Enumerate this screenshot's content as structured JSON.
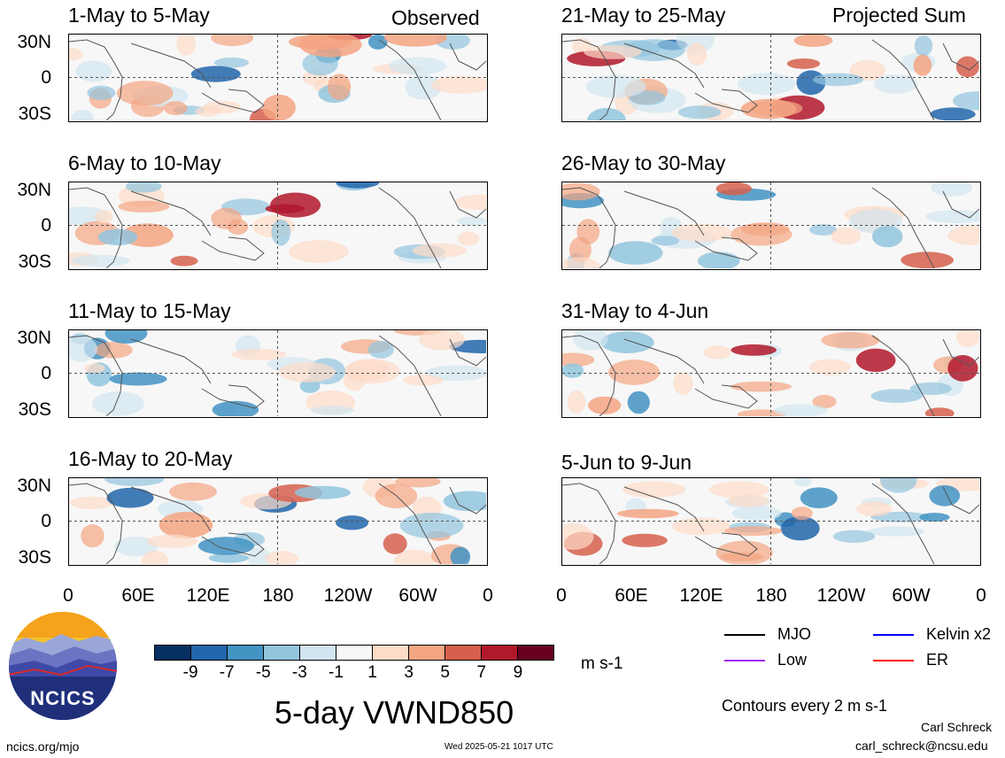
{
  "column_titles": {
    "left": "Observed",
    "right": "Projected Sum"
  },
  "panels_left": [
    {
      "title": "1-May to 5-May"
    },
    {
      "title": "6-May to 10-May"
    },
    {
      "title": "11-May to 15-May"
    },
    {
      "title": "16-May to 20-May"
    }
  ],
  "panels_right": [
    {
      "title": "21-May to 25-May"
    },
    {
      "title": "26-May to 30-May"
    },
    {
      "title": "31-May to 4-Jun"
    },
    {
      "title": "5-Jun to 9-Jun"
    }
  ],
  "lat_labels": [
    "30N",
    "0",
    "30S"
  ],
  "lon_labels": [
    "0",
    "60E",
    "120E",
    "180",
    "120W",
    "60W",
    "0"
  ],
  "colorbar": {
    "colors": [
      "#053061",
      "#2166ac",
      "#4393c3",
      "#92c5de",
      "#d1e5f0",
      "#f7f7f7",
      "#fddbc7",
      "#f4a582",
      "#d6604d",
      "#b2182b",
      "#67001f"
    ],
    "labels": [
      "-9",
      "-7",
      "-5",
      "-3",
      "-1",
      "1",
      "3",
      "5",
      "7",
      "9"
    ],
    "units": "m s-1"
  },
  "main_title": "5-day VWND850",
  "legend": [
    {
      "label": "MJO",
      "color": "#000000"
    },
    {
      "label": "Kelvin x2",
      "color": "#0000ff"
    },
    {
      "label": "Low",
      "color": "#a020f0"
    },
    {
      "label": "ER",
      "color": "#ff0000"
    }
  ],
  "contour_note": "Contours every 2 m s-1",
  "author": "Carl Schreck",
  "email": "carl_schreck@ncsu.edu",
  "website": "ncics.org/mjo",
  "timestamp": "Wed 2025-05-21 1017 UTC",
  "logo_text": "NCICS"
}
